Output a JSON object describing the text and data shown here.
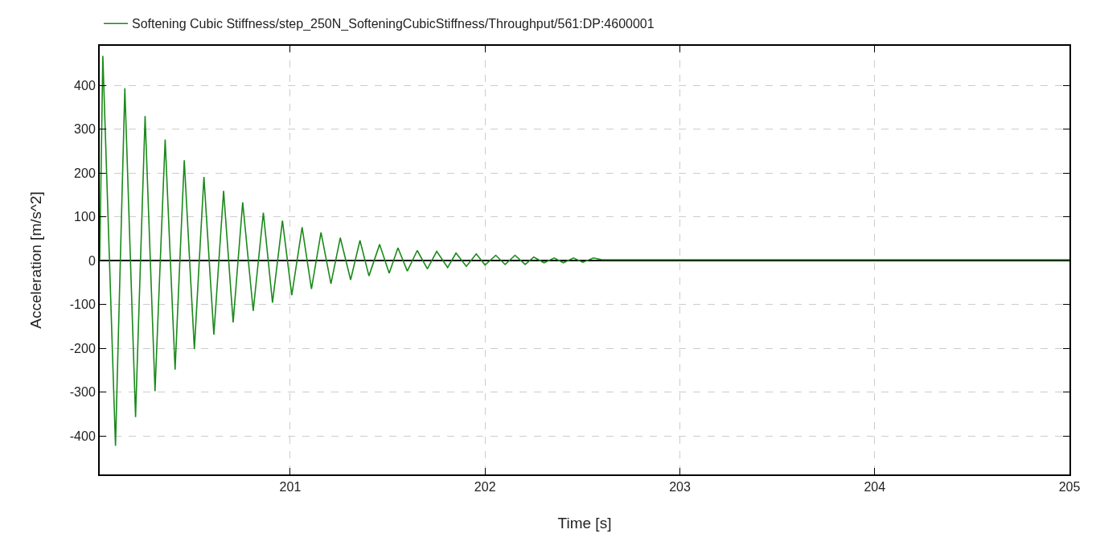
{
  "chart_data": {
    "type": "line",
    "xlabel": "Time [s]",
    "ylabel": "Acceleration [m/s^2]",
    "series": [
      {
        "name": "Softening Cubic Stiffness/step_250N_SofteningCubicStiffness/Throughput/561:DP:4600001",
        "color": "#1a8a1a",
        "x": [
          200.022,
          200.038,
          200.103,
          200.151,
          200.206,
          200.255,
          200.306,
          200.358,
          200.409,
          200.456,
          200.508,
          200.557,
          200.608,
          200.658,
          200.707,
          200.756,
          200.81,
          200.862,
          200.909,
          200.96,
          201.008,
          201.061,
          201.109,
          201.158,
          201.209,
          201.257,
          201.31,
          201.358,
          201.404,
          201.459,
          201.508,
          201.553,
          201.601,
          201.652,
          201.704,
          201.752,
          201.808,
          201.851,
          201.904,
          201.955,
          202.0,
          202.055,
          202.103,
          202.154,
          202.206,
          202.25,
          202.303,
          202.355,
          202.402,
          202.454,
          202.502,
          202.557,
          202.6,
          203,
          204,
          205
        ],
        "values": [
          0,
          467,
          -423,
          393,
          -357,
          330,
          -298,
          276,
          -249,
          229,
          -202,
          191,
          -169,
          159,
          -141,
          133,
          -115,
          109,
          -96,
          91,
          -79,
          76,
          -65,
          64,
          -53,
          52,
          -44,
          46,
          -35,
          37,
          -29,
          29,
          -24,
          23,
          -19,
          21,
          -16,
          17,
          -13,
          15,
          -10,
          12,
          -9,
          12,
          -9,
          8,
          -5,
          6,
          -5,
          6,
          -4,
          6,
          2,
          2,
          2,
          2
        ]
      }
    ],
    "xlim": [
      200.022,
      205
    ],
    "xticks": [
      201,
      202,
      203,
      204,
      205
    ],
    "ylim": [
      -488,
      490
    ],
    "yticks": [
      -400,
      -300,
      -200,
      -100,
      0,
      100,
      200,
      300,
      400
    ],
    "grid": true,
    "legend": "top left",
    "marker": "none",
    "line_style": "solid"
  }
}
